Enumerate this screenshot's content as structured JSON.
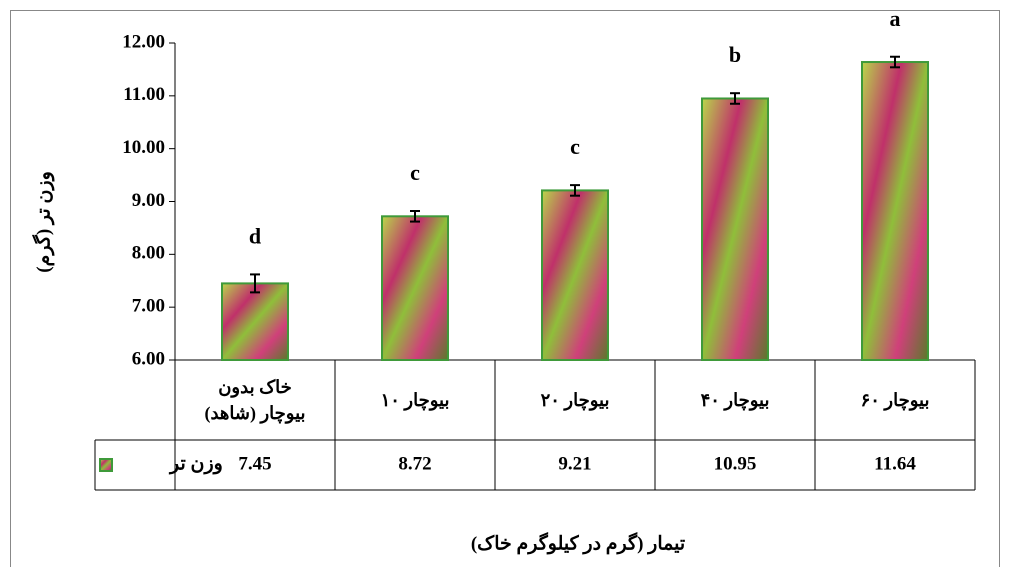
{
  "chart_data": {
    "type": "bar",
    "y_axis_label": "وزن تر (گرم)",
    "x_axis_label": "تیمار (گرم در کیلوگرم خاک)",
    "categories": [
      "خاک بدون بیوچار (شاهد)",
      "بیوچار ۱۰",
      "بیوچار ۲۰",
      "بیوچار ۴۰",
      "بیوچار ۶۰"
    ],
    "series": [
      {
        "name": "وزن تر",
        "color": "#3f9a3a",
        "values": [
          7.45,
          8.72,
          9.21,
          10.95,
          11.64
        ],
        "errors": [
          0.17,
          0.1,
          0.1,
          0.1,
          0.1
        ],
        "annotations": [
          "d",
          "c",
          "c",
          "b",
          "a"
        ]
      }
    ],
    "ylim": [
      6,
      12
    ],
    "yticks": [
      {
        "value": 6,
        "label": "6.00"
      },
      {
        "value": 7,
        "label": "7.00"
      },
      {
        "value": 8,
        "label": "8.00"
      },
      {
        "value": 9,
        "label": "9.00"
      },
      {
        "value": 10,
        "label": "10.00"
      },
      {
        "value": 11,
        "label": "11.00"
      },
      {
        "value": 12,
        "label": "12.00"
      }
    ],
    "grid": false,
    "data_table": true
  }
}
